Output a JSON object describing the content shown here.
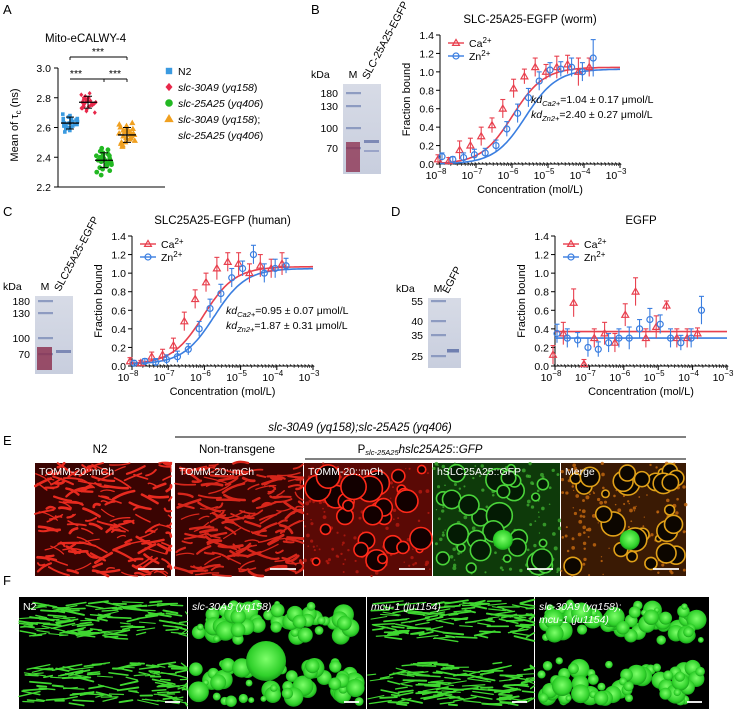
{
  "figure": {
    "panel_letters": [
      "A",
      "B",
      "C",
      "D",
      "E",
      "F"
    ],
    "panel_a": {
      "title": "Mito-eCALWY-4",
      "ylabel_main": "Mean of τ",
      "ylabel_sub": "c",
      "ylabel_unit": " (ns)",
      "yticks": [
        "2.2",
        "2.4",
        "2.6",
        "2.8",
        "3.0"
      ],
      "significance": [
        "***",
        "***",
        "***"
      ],
      "legend": [
        {
          "name": "N2",
          "italic": "",
          "suffix": "",
          "color": "#3a9ae0",
          "marker": "square"
        },
        {
          "name": "",
          "italic": "slc-30A9",
          "suffix": " (yq158)",
          "color": "#e8284a",
          "marker": "diamond"
        },
        {
          "name": "",
          "italic": "slc-25A25",
          "suffix": " (yq406)",
          "color": "#22b822",
          "marker": "circle"
        },
        {
          "name": "",
          "italic": "slc-30A9",
          "suffix": " (yq158);",
          "color": "#f0a020",
          "marker": "triangle"
        },
        {
          "name": "",
          "italic": "slc-25A25",
          "suffix": " (yq406)",
          "color": "",
          "marker": "none"
        }
      ]
    },
    "gels": {
      "B": {
        "kda": "kDa",
        "lane_m": "M",
        "lane_sample": "SLC-25A25-EGFP",
        "markers": [
          "180",
          "130",
          "100",
          "70"
        ]
      },
      "C": {
        "kda": "kDa",
        "lane_m": "M",
        "lane_sample": "SLC25A25-EGFP",
        "markers": [
          "180",
          "130",
          "100",
          "70"
        ]
      },
      "D": {
        "kda": "kDa",
        "lane_m": "M",
        "lane_sample": "EGFP",
        "markers": [
          "55",
          "40",
          "35",
          "25"
        ]
      }
    },
    "panel_e": {
      "header_genotype": "slc-30A9 (yq158);slc-25A25 (yq406)",
      "col_n2": "N2",
      "col_nontransgene": "Non-transgene",
      "col_transgene": "Pslc-25A25hslc25A25::GFP",
      "images": [
        "TOMM-20::mCh",
        "TOMM-20::mCh",
        "TOMM-20::mCh",
        "hSLC25A25::GFP",
        "Merge"
      ]
    },
    "panel_f": {
      "images": [
        "N2",
        "slc-30A9 (yq158)",
        "mcu-1 (ju1154)",
        "slc-30A9 (yq158); mcu-1 (ju1154)"
      ]
    }
  },
  "chart_data": [
    {
      "panel": "A",
      "type": "scatter",
      "title": "Mito-eCALWY-4",
      "xlabel": "",
      "ylabel": "Mean of τc (ns)",
      "ylim": [
        2.2,
        3.0
      ],
      "categories": [
        "N2",
        "slc-30A9 (yq158)",
        "slc-25A25 (yq406)",
        "slc-30A9 (yq158); slc-25A25 (yq406)"
      ],
      "series": [
        {
          "name": "N2",
          "mean": 2.63,
          "sd": 0.04,
          "values": [
            2.58,
            2.6,
            2.61,
            2.62,
            2.63,
            2.63,
            2.64,
            2.65,
            2.66,
            2.67,
            2.6,
            2.62,
            2.64,
            2.66,
            2.68,
            2.59,
            2.61,
            2.63,
            2.65,
            2.67,
            2.57,
            2.69,
            2.62,
            2.64,
            2.63,
            2.6,
            2.66,
            2.61
          ]
        },
        {
          "name": "slc-30A9 (yq158)",
          "mean": 2.77,
          "sd": 0.04,
          "values": [
            2.72,
            2.74,
            2.75,
            2.76,
            2.77,
            2.77,
            2.78,
            2.79,
            2.8,
            2.81,
            2.73,
            2.75,
            2.77,
            2.79,
            2.82,
            2.7,
            2.74,
            2.76,
            2.78,
            2.8,
            2.83,
            2.71,
            2.76,
            2.78,
            2.77,
            2.75,
            2.79,
            2.73
          ]
        },
        {
          "name": "slc-25A25 (yq406)",
          "mean": 2.38,
          "sd": 0.05,
          "values": [
            2.3,
            2.32,
            2.34,
            2.35,
            2.36,
            2.37,
            2.38,
            2.39,
            2.4,
            2.41,
            2.42,
            2.43,
            2.44,
            2.33,
            2.36,
            2.38,
            2.4,
            2.42,
            2.31,
            2.35,
            2.37,
            2.39,
            2.45,
            2.34,
            2.38,
            2.41,
            2.28,
            2.46
          ]
        },
        {
          "name": "slc-30A9 (yq158); slc-25A25 (yq406)",
          "mean": 2.55,
          "sd": 0.05,
          "values": [
            2.47,
            2.5,
            2.52,
            2.53,
            2.54,
            2.55,
            2.56,
            2.57,
            2.58,
            2.59,
            2.6,
            2.51,
            2.53,
            2.55,
            2.57,
            2.61,
            2.49,
            2.54,
            2.56,
            2.58,
            2.62,
            2.5,
            2.55,
            2.57,
            2.52,
            2.59,
            2.48,
            2.63
          ]
        }
      ],
      "significance_pairs": [
        [
          "N2",
          "slc-25A25 (yq406)"
        ],
        [
          "N2",
          "slc-30A9 (yq158)"
        ],
        [
          "slc-30A9 (yq158)",
          "slc-30A9 (yq158); slc-25A25 (yq406)"
        ]
      ]
    },
    {
      "panel": "B",
      "type": "scatter",
      "title": "SLC-25A25-EGFP (worm)",
      "xlabel": "Concentration (mol/L)",
      "ylabel": "Fraction bound",
      "xscale": "log",
      "xlim_exp": [
        -8,
        -3
      ],
      "ylim": [
        0,
        1.4
      ],
      "yticks": [
        "0.0",
        "0.2",
        "0.4",
        "0.6",
        "0.8",
        "1.0",
        "1.2",
        "1.4"
      ],
      "kd_ca": "=1.04 ± 0.17 μmol/L",
      "kd_zn": "=2.40 ± 0.27 μmol/L",
      "legend": [
        "Ca2+",
        "Zn2+"
      ],
      "legend_sup": "2+",
      "series": [
        {
          "name": "Ca2+",
          "color": "#e8404e",
          "marker": "triangle",
          "fit": {
            "kd": 1.04e-06,
            "min": 0.0,
            "max": 1.05
          },
          "x_exp": [
            -8,
            -7.7,
            -7.4,
            -7.1,
            -6.8,
            -6.5,
            -6.2,
            -5.9,
            -5.6,
            -5.3,
            -5,
            -4.7,
            -4.4,
            -4.1,
            -3.8
          ],
          "y": [
            0.05,
            0.03,
            0.15,
            0.2,
            0.3,
            0.42,
            0.6,
            0.82,
            0.95,
            1.05,
            1.0,
            1.05,
            1.08,
            1.0,
            1.05
          ],
          "err": [
            0.05,
            0.04,
            0.1,
            0.08,
            0.1,
            0.08,
            0.1,
            0.1,
            0.08,
            0.1,
            0.08,
            0.12,
            0.1,
            0.15,
            0.1
          ]
        },
        {
          "name": "Zn2+",
          "color": "#3a7ee0",
          "marker": "circle",
          "fit": {
            "kd": 2.4e-06,
            "min": 0.0,
            "max": 1.03
          },
          "x_exp": [
            -8,
            -7.7,
            -7.4,
            -7.1,
            -6.8,
            -6.5,
            -6.2,
            -5.9,
            -5.6,
            -5.3,
            -5,
            -4.7,
            -4.4,
            -4.1,
            -3.8
          ],
          "y": [
            0.08,
            0.05,
            0.07,
            0.1,
            0.12,
            0.2,
            0.38,
            0.55,
            0.72,
            0.9,
            1.02,
            1.03,
            1.05,
            1.0,
            1.15
          ],
          "err": [
            0.04,
            0.03,
            0.05,
            0.06,
            0.05,
            0.06,
            0.08,
            0.1,
            0.1,
            0.1,
            0.08,
            0.08,
            0.1,
            0.1,
            0.2
          ]
        }
      ]
    },
    {
      "panel": "C",
      "type": "scatter",
      "title": "SLC25A25-EGFP (human)",
      "xlabel": "Concentration (mol/L)",
      "ylabel": "Fraction bound",
      "xscale": "log",
      "xlim_exp": [
        -8,
        -3
      ],
      "ylim": [
        0,
        1.4
      ],
      "yticks": [
        "0.0",
        "0.2",
        "0.4",
        "0.6",
        "0.8",
        "1.0",
        "1.2",
        "1.4"
      ],
      "kd_ca": "=0.95 ± 0.07 μmol/L",
      "kd_zn": "=1.87 ± 0.31 μmol/L",
      "legend": [
        "Ca2+",
        "Zn2+"
      ],
      "legend_sup": "2+",
      "series": [
        {
          "name": "Ca2+",
          "color": "#e8404e",
          "marker": "triangle",
          "fit": {
            "kd": 9.5e-07,
            "min": 0.02,
            "max": 1.07
          },
          "x_exp": [
            -8,
            -7.7,
            -7.4,
            -7.1,
            -6.8,
            -6.5,
            -6.2,
            -5.9,
            -5.6,
            -5.3,
            -5,
            -4.7,
            -4.4,
            -4.1,
            -3.8
          ],
          "y": [
            0.05,
            0.03,
            0.1,
            0.12,
            0.22,
            0.48,
            0.72,
            0.9,
            1.05,
            1.12,
            1.1,
            1.0,
            1.08,
            1.05,
            1.1
          ],
          "err": [
            0.04,
            0.03,
            0.05,
            0.06,
            0.08,
            0.1,
            0.1,
            0.1,
            0.12,
            0.1,
            0.12,
            0.1,
            0.12,
            0.1,
            0.12
          ]
        },
        {
          "name": "Zn2+",
          "color": "#3a7ee0",
          "marker": "circle",
          "fit": {
            "kd": 1.87e-06,
            "min": 0.02,
            "max": 1.05
          },
          "x_exp": [
            -8,
            -7.7,
            -7.4,
            -7.1,
            -6.8,
            -6.5,
            -6.2,
            -5.9,
            -5.6,
            -5.3,
            -5,
            -4.7,
            -4.4,
            -4.1,
            -3.8
          ],
          "y": [
            0.03,
            0.05,
            0.04,
            0.07,
            0.1,
            0.18,
            0.4,
            0.62,
            0.78,
            0.95,
            1.05,
            1.2,
            1.0,
            1.05,
            1.08
          ],
          "err": [
            0.03,
            0.03,
            0.04,
            0.05,
            0.06,
            0.06,
            0.08,
            0.1,
            0.1,
            0.1,
            0.08,
            0.1,
            0.1,
            0.1,
            0.08
          ]
        }
      ]
    },
    {
      "panel": "D",
      "type": "scatter",
      "title": "EGFP",
      "xlabel": "Concentration (mol/L)",
      "ylabel": "Fraction bound",
      "xscale": "log",
      "xlim_exp": [
        -8,
        -3
      ],
      "ylim": [
        0,
        1.4
      ],
      "yticks": [
        "0.0",
        "0.2",
        "0.4",
        "0.6",
        "0.8",
        "1.0",
        "1.2",
        "1.4"
      ],
      "legend": [
        "Ca2+",
        "Zn2+"
      ],
      "legend_sup": "2+",
      "series": [
        {
          "name": "Ca2+",
          "color": "#e8404e",
          "marker": "triangle",
          "fit": {
            "flat": 0.37
          },
          "x_exp": [
            -8,
            -7.7,
            -7.4,
            -7.1,
            -6.8,
            -6.5,
            -6.2,
            -5.9,
            -5.6,
            -5.3,
            -5,
            -4.7,
            -4.4,
            -4.1,
            -3.8
          ],
          "y": [
            0.12,
            0.35,
            0.68,
            0.02,
            0.3,
            0.35,
            0.25,
            0.55,
            0.8,
            0.3,
            0.42,
            0.65,
            0.3,
            0.3,
            0.35
          ],
          "err": [
            0.1,
            0.12,
            0.15,
            0.05,
            0.1,
            0.12,
            0.1,
            0.12,
            0.15,
            0.1,
            0.12,
            0.05,
            0.1,
            0.1,
            0.06
          ]
        },
        {
          "name": "Zn2+",
          "color": "#3a7ee0",
          "marker": "circle",
          "fit": {
            "flat": 0.3
          },
          "x_exp": [
            -8,
            -7.7,
            -7.4,
            -7.1,
            -6.8,
            -6.5,
            -6.2,
            -5.9,
            -5.6,
            -5.3,
            -5,
            -4.7,
            -4.4,
            -4.1,
            -3.8
          ],
          "y": [
            0.35,
            0.3,
            0.28,
            0.2,
            0.18,
            0.25,
            0.3,
            0.3,
            0.4,
            0.5,
            0.45,
            0.3,
            0.25,
            0.3,
            0.6
          ],
          "err": [
            0.1,
            0.1,
            0.08,
            0.1,
            0.08,
            0.1,
            0.1,
            0.12,
            0.1,
            0.12,
            0.1,
            0.1,
            0.08,
            0.1,
            0.15
          ]
        }
      ]
    }
  ]
}
